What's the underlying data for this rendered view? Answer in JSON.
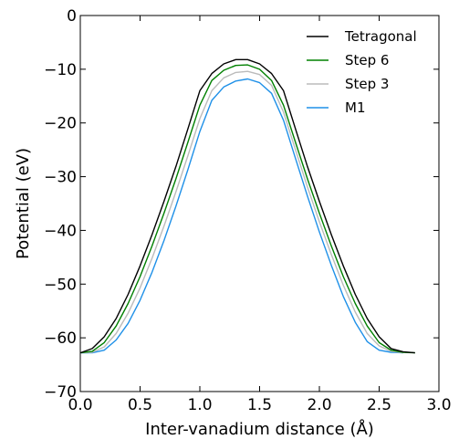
{
  "chart_data": {
    "type": "line",
    "title": "",
    "xlabel": "Inter-vanadium distance (Å)",
    "ylabel": "Potential (eV)",
    "xlim": [
      0.0,
      3.0
    ],
    "ylim": [
      -70,
      0
    ],
    "xticks": [
      "0.0",
      "0.5",
      "1.0",
      "1.5",
      "2.0",
      "2.5",
      "3.0"
    ],
    "yticks": [
      "0",
      "−10",
      "−20",
      "−30",
      "−40",
      "−50",
      "−60",
      "−70"
    ],
    "grid": false,
    "legend_position": "top-right",
    "series": [
      {
        "name": "Tetragonal",
        "color": "#000000",
        "x": [
          0.0,
          0.1,
          0.2,
          0.3,
          0.4,
          0.5,
          0.6,
          0.7,
          0.8,
          0.9,
          1.0,
          1.1,
          1.2,
          1.3,
          1.4,
          1.5,
          1.6,
          1.7,
          1.8,
          1.9,
          2.0,
          2.1,
          2.2,
          2.3,
          2.4,
          2.5,
          2.6,
          2.7,
          2.8
        ],
        "y": [
          -62.8,
          -62.0,
          -59.8,
          -56.4,
          -51.9,
          -46.6,
          -40.8,
          -34.6,
          -28.1,
          -21.1,
          -14.0,
          -10.8,
          -9.0,
          -8.2,
          -8.2,
          -9.0,
          -10.8,
          -14.0,
          -21.1,
          -28.1,
          -34.6,
          -40.8,
          -46.6,
          -51.9,
          -56.4,
          -59.8,
          -62.0,
          -62.6,
          -62.8
        ]
      },
      {
        "name": "Step 6",
        "color": "#008000",
        "x": [
          0.0,
          0.1,
          0.2,
          0.3,
          0.4,
          0.5,
          0.6,
          0.7,
          0.8,
          0.9,
          1.0,
          1.1,
          1.2,
          1.3,
          1.4,
          1.5,
          1.6,
          1.7,
          1.8,
          1.9,
          2.0,
          2.1,
          2.2,
          2.3,
          2.4,
          2.5,
          2.6,
          2.7,
          2.8
        ],
        "y": [
          -62.8,
          -62.5,
          -60.9,
          -57.8,
          -53.6,
          -48.6,
          -42.9,
          -36.8,
          -30.4,
          -23.6,
          -16.7,
          -12.1,
          -10.2,
          -9.3,
          -9.2,
          -10.0,
          -12.1,
          -16.7,
          -23.6,
          -30.4,
          -36.8,
          -42.9,
          -48.6,
          -53.6,
          -57.8,
          -60.9,
          -62.3,
          -62.7,
          -62.8
        ]
      },
      {
        "name": "Step 3",
        "color": "#bbbbbb",
        "x": [
          0.0,
          0.1,
          0.2,
          0.3,
          0.4,
          0.5,
          0.6,
          0.7,
          0.8,
          0.9,
          1.0,
          1.1,
          1.2,
          1.3,
          1.4,
          1.5,
          1.6,
          1.7,
          1.8,
          1.9,
          2.0,
          2.1,
          2.2,
          2.3,
          2.4,
          2.5,
          2.6,
          2.7
        ],
        "y": [
          -62.8,
          -62.7,
          -61.7,
          -59.2,
          -55.4,
          -50.7,
          -45.2,
          -39.2,
          -32.8,
          -26.1,
          -19.2,
          -14.0,
          -11.6,
          -10.6,
          -10.4,
          -11.0,
          -13.0,
          -18.0,
          -25.0,
          -31.9,
          -38.4,
          -44.5,
          -50.2,
          -55.2,
          -59.2,
          -61.5,
          -62.5,
          -62.8
        ]
      },
      {
        "name": "M1",
        "color": "#1e90e8",
        "x": [
          0.0,
          0.1,
          0.2,
          0.3,
          0.4,
          0.5,
          0.6,
          0.7,
          0.8,
          0.9,
          1.0,
          1.1,
          1.2,
          1.3,
          1.4,
          1.5,
          1.6,
          1.7,
          1.8,
          1.9,
          2.0,
          2.1,
          2.2,
          2.3,
          2.4,
          2.5,
          2.6,
          2.7
        ],
        "y": [
          -62.8,
          -62.8,
          -62.3,
          -60.4,
          -57.3,
          -53.0,
          -47.8,
          -41.9,
          -35.5,
          -28.7,
          -21.6,
          -15.8,
          -13.3,
          -12.2,
          -11.8,
          -12.5,
          -14.5,
          -19.5,
          -26.6,
          -33.6,
          -40.3,
          -46.5,
          -52.3,
          -57.1,
          -60.7,
          -62.3,
          -62.7,
          -62.8
        ]
      }
    ]
  }
}
